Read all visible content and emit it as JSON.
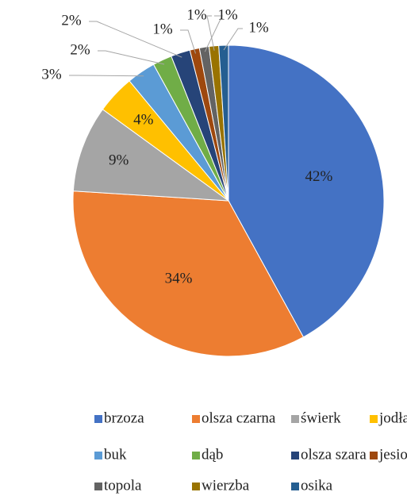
{
  "chart_data": {
    "type": "pie",
    "categories": [
      "brzoza",
      "olsza czarna",
      "świerk",
      "jodła",
      "buk",
      "dąb",
      "olsza szara",
      "jesion",
      "topola",
      "wierzba",
      "osika"
    ],
    "values": [
      42,
      34,
      9,
      4,
      3,
      2,
      2,
      1,
      1,
      1,
      1
    ],
    "value_labels": [
      "42%",
      "34%",
      "9%",
      "4%",
      "3%",
      "2%",
      "2%",
      "1%",
      "1%",
      "1%",
      "1%"
    ],
    "colors": [
      "#4472c4",
      "#ed7d31",
      "#a5a5a5",
      "#ffc000",
      "#5b9bd5",
      "#70ad47",
      "#264478",
      "#9e480e",
      "#636363",
      "#997300",
      "#255e91"
    ],
    "legend": "bottom"
  }
}
